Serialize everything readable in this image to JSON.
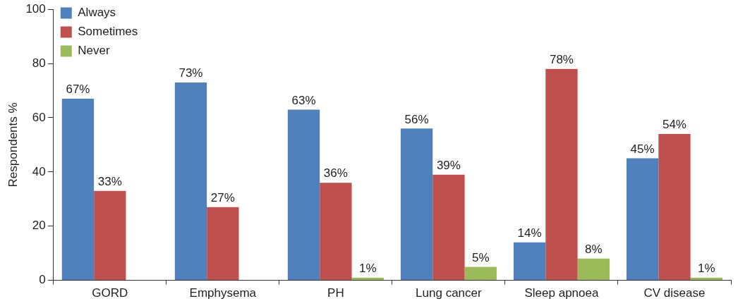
{
  "chart_data": {
    "type": "bar",
    "ylabel": "Respondents %",
    "categories": [
      "GORD",
      "Emphysema",
      "PH",
      "Lung cancer",
      "Sleep apnoea",
      "CV disease"
    ],
    "series": [
      {
        "name": "Always",
        "color": "#4f81bd",
        "values": [
          67,
          73,
          63,
          56,
          14,
          45
        ],
        "value_labels": [
          "67%",
          "73%",
          "63%",
          "56%",
          "14%",
          "45%"
        ]
      },
      {
        "name": "Sometimes",
        "color": "#c0504d",
        "values": [
          33,
          27,
          36,
          39,
          78,
          54
        ],
        "value_labels": [
          "33%",
          "27%",
          "36%",
          "39%",
          "78%",
          "54%"
        ]
      },
      {
        "name": "Never",
        "color": "#9bbb59",
        "values": [
          null,
          null,
          1,
          5,
          8,
          1
        ],
        "value_labels": [
          null,
          null,
          "1%",
          "5%",
          "8%",
          "1%"
        ]
      }
    ],
    "ylim": [
      0,
      100
    ],
    "yticks": [
      0,
      20,
      40,
      60,
      80,
      100
    ],
    "grid": false,
    "legend": "top left"
  }
}
